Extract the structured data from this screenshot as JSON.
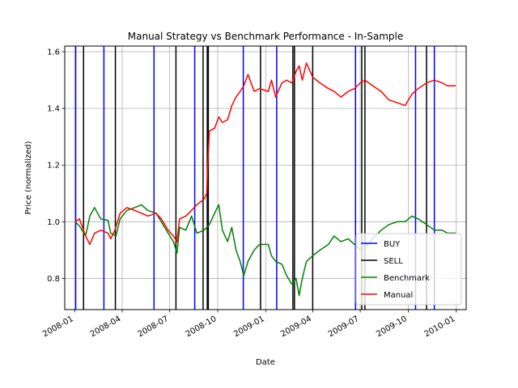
{
  "chart_data": {
    "type": "line",
    "title": "Manual Strategy vs Benchmark Performance - In-Sample",
    "xlabel": "Date",
    "ylabel": "Price (normalized)",
    "xlim": [
      "2007-12-13",
      "2010-01-20"
    ],
    "ylim": [
      0.69,
      1.62
    ],
    "grid": true,
    "legend_position": "lower-right",
    "yticks": [
      {
        "value": 0.8,
        "label": "0.8"
      },
      {
        "value": 1.0,
        "label": "1.0"
      },
      {
        "value": 1.2,
        "label": "1.2"
      },
      {
        "value": 1.4,
        "label": "1.4"
      },
      {
        "value": 1.6,
        "label": "1.6"
      }
    ],
    "xticks": [
      {
        "date": "2008-01-01",
        "label": "2008-01"
      },
      {
        "date": "2008-04-01",
        "label": "2008-04"
      },
      {
        "date": "2008-07-01",
        "label": "2008-07"
      },
      {
        "date": "2008-10-01",
        "label": "2008-10"
      },
      {
        "date": "2009-01-01",
        "label": "2009-01"
      },
      {
        "date": "2009-04-01",
        "label": "2009-04"
      },
      {
        "date": "2009-07-01",
        "label": "2009-07"
      },
      {
        "date": "2009-10-01",
        "label": "2009-10"
      },
      {
        "date": "2010-01-01",
        "label": "2010-01"
      }
    ],
    "series": [
      {
        "name": "Benchmark",
        "color": "#008000",
        "points": [
          [
            "2008-01-02",
            1.0
          ],
          [
            "2008-01-10",
            0.985
          ],
          [
            "2008-01-22",
            0.95
          ],
          [
            "2008-01-30",
            1.02
          ],
          [
            "2008-02-08",
            1.05
          ],
          [
            "2008-02-20",
            1.01
          ],
          [
            "2008-03-05",
            1.005
          ],
          [
            "2008-03-10",
            0.96
          ],
          [
            "2008-03-20",
            0.95
          ],
          [
            "2008-03-28",
            1.01
          ],
          [
            "2008-04-10",
            1.04
          ],
          [
            "2008-04-25",
            1.05
          ],
          [
            "2008-05-08",
            1.06
          ],
          [
            "2008-05-20",
            1.04
          ],
          [
            "2008-06-05",
            1.03
          ],
          [
            "2008-06-15",
            1.0
          ],
          [
            "2008-06-28",
            0.96
          ],
          [
            "2008-07-08",
            0.93
          ],
          [
            "2008-07-15",
            0.89
          ],
          [
            "2008-07-20",
            0.98
          ],
          [
            "2008-08-01",
            0.97
          ],
          [
            "2008-08-12",
            1.02
          ],
          [
            "2008-08-22",
            0.96
          ],
          [
            "2008-09-05",
            0.97
          ],
          [
            "2008-09-15",
            0.99
          ],
          [
            "2008-09-25",
            1.03
          ],
          [
            "2008-10-03",
            1.06
          ],
          [
            "2008-10-10",
            0.97
          ],
          [
            "2008-10-20",
            0.93
          ],
          [
            "2008-10-28",
            0.98
          ],
          [
            "2008-11-05",
            0.9
          ],
          [
            "2008-11-13",
            0.86
          ],
          [
            "2008-11-20",
            0.81
          ],
          [
            "2008-11-28",
            0.86
          ],
          [
            "2008-12-10",
            0.9
          ],
          [
            "2008-12-20",
            0.92
          ],
          [
            "2009-01-06",
            0.92
          ],
          [
            "2009-01-12",
            0.88
          ],
          [
            "2009-01-20",
            0.86
          ],
          [
            "2009-02-01",
            0.85
          ],
          [
            "2009-02-10",
            0.81
          ],
          [
            "2009-02-20",
            0.78
          ],
          [
            "2009-02-28",
            0.8
          ],
          [
            "2009-03-06",
            0.74
          ],
          [
            "2009-03-12",
            0.8
          ],
          [
            "2009-03-20",
            0.86
          ],
          [
            "2009-04-01",
            0.88
          ],
          [
            "2009-04-15",
            0.9
          ],
          [
            "2009-05-01",
            0.92
          ],
          [
            "2009-05-12",
            0.95
          ],
          [
            "2009-05-25",
            0.93
          ],
          [
            "2009-06-08",
            0.94
          ],
          [
            "2009-06-20",
            0.92
          ],
          [
            "2009-07-01",
            0.9
          ],
          [
            "2009-07-10",
            0.91
          ],
          [
            "2009-07-25",
            0.94
          ],
          [
            "2009-08-10",
            0.97
          ],
          [
            "2009-08-25",
            0.99
          ],
          [
            "2009-09-10",
            1.0
          ],
          [
            "2009-09-25",
            1.0
          ],
          [
            "2009-10-08",
            1.02
          ],
          [
            "2009-10-20",
            1.01
          ],
          [
            "2009-11-05",
            0.99
          ],
          [
            "2009-11-20",
            0.97
          ],
          [
            "2009-12-05",
            0.97
          ],
          [
            "2009-12-15",
            0.96
          ],
          [
            "2009-12-31",
            0.96
          ]
        ]
      },
      {
        "name": "Manual",
        "color": "#ff0000",
        "points": [
          [
            "2008-01-02",
            1.0
          ],
          [
            "2008-01-10",
            1.01
          ],
          [
            "2008-01-22",
            0.95
          ],
          [
            "2008-01-30",
            0.92
          ],
          [
            "2008-02-08",
            0.96
          ],
          [
            "2008-02-20",
            0.97
          ],
          [
            "2008-03-05",
            0.96
          ],
          [
            "2008-03-10",
            0.94
          ],
          [
            "2008-03-18",
            0.97
          ],
          [
            "2008-03-28",
            1.03
          ],
          [
            "2008-04-10",
            1.05
          ],
          [
            "2008-04-25",
            1.04
          ],
          [
            "2008-05-08",
            1.03
          ],
          [
            "2008-05-20",
            1.02
          ],
          [
            "2008-06-05",
            1.03
          ],
          [
            "2008-06-15",
            1.01
          ],
          [
            "2008-06-28",
            0.97
          ],
          [
            "2008-07-08",
            0.95
          ],
          [
            "2008-07-15",
            0.93
          ],
          [
            "2008-07-20",
            1.01
          ],
          [
            "2008-08-01",
            1.02
          ],
          [
            "2008-08-12",
            1.04
          ],
          [
            "2008-08-22",
            1.06
          ],
          [
            "2008-09-05",
            1.08
          ],
          [
            "2008-09-10",
            1.1
          ],
          [
            "2008-09-12",
            1.2
          ],
          [
            "2008-09-15",
            1.32
          ],
          [
            "2008-09-25",
            1.33
          ],
          [
            "2008-10-03",
            1.37
          ],
          [
            "2008-10-10",
            1.35
          ],
          [
            "2008-10-20",
            1.36
          ],
          [
            "2008-10-28",
            1.41
          ],
          [
            "2008-11-05",
            1.44
          ],
          [
            "2008-11-13",
            1.46
          ],
          [
            "2008-11-20",
            1.48
          ],
          [
            "2008-11-28",
            1.52
          ],
          [
            "2008-12-10",
            1.46
          ],
          [
            "2008-12-20",
            1.47
          ],
          [
            "2009-01-06",
            1.46
          ],
          [
            "2009-01-12",
            1.5
          ],
          [
            "2009-01-20",
            1.44
          ],
          [
            "2009-02-01",
            1.49
          ],
          [
            "2009-02-10",
            1.5
          ],
          [
            "2009-02-20",
            1.49
          ],
          [
            "2009-02-28",
            1.53
          ],
          [
            "2009-03-06",
            1.55
          ],
          [
            "2009-03-12",
            1.5
          ],
          [
            "2009-03-20",
            1.56
          ],
          [
            "2009-04-01",
            1.51
          ],
          [
            "2009-04-15",
            1.49
          ],
          [
            "2009-05-01",
            1.47
          ],
          [
            "2009-05-12",
            1.46
          ],
          [
            "2009-05-25",
            1.44
          ],
          [
            "2009-06-08",
            1.46
          ],
          [
            "2009-06-20",
            1.47
          ],
          [
            "2009-07-01",
            1.49
          ],
          [
            "2009-07-10",
            1.5
          ],
          [
            "2009-07-25",
            1.48
          ],
          [
            "2009-08-10",
            1.46
          ],
          [
            "2009-08-25",
            1.43
          ],
          [
            "2009-09-10",
            1.42
          ],
          [
            "2009-09-25",
            1.41
          ],
          [
            "2009-10-08",
            1.45
          ],
          [
            "2009-10-20",
            1.47
          ],
          [
            "2009-11-05",
            1.49
          ],
          [
            "2009-11-20",
            1.5
          ],
          [
            "2009-12-05",
            1.49
          ],
          [
            "2009-12-15",
            1.48
          ],
          [
            "2009-12-31",
            1.48
          ]
        ]
      }
    ],
    "buy_dates": [
      "2008-01-03",
      "2008-02-26",
      "2008-06-01",
      "2008-08-18",
      "2008-11-19",
      "2009-01-22",
      "2009-06-22",
      "2009-10-15",
      "2009-11-20"
    ],
    "sell_dates": [
      "2008-01-18",
      "2008-03-19",
      "2008-07-13",
      "2008-09-03",
      "2008-09-11",
      "2008-09-13",
      "2008-12-22",
      "2009-02-22",
      "2009-02-25",
      "2009-04-01",
      "2009-07-04",
      "2009-07-10",
      "2009-11-05"
    ],
    "legend": [
      {
        "label": "BUY",
        "color": "#0000ff"
      },
      {
        "label": "SELL",
        "color": "#000000"
      },
      {
        "label": "Benchmark",
        "color": "#008000"
      },
      {
        "label": "Manual",
        "color": "#ff0000"
      }
    ]
  }
}
